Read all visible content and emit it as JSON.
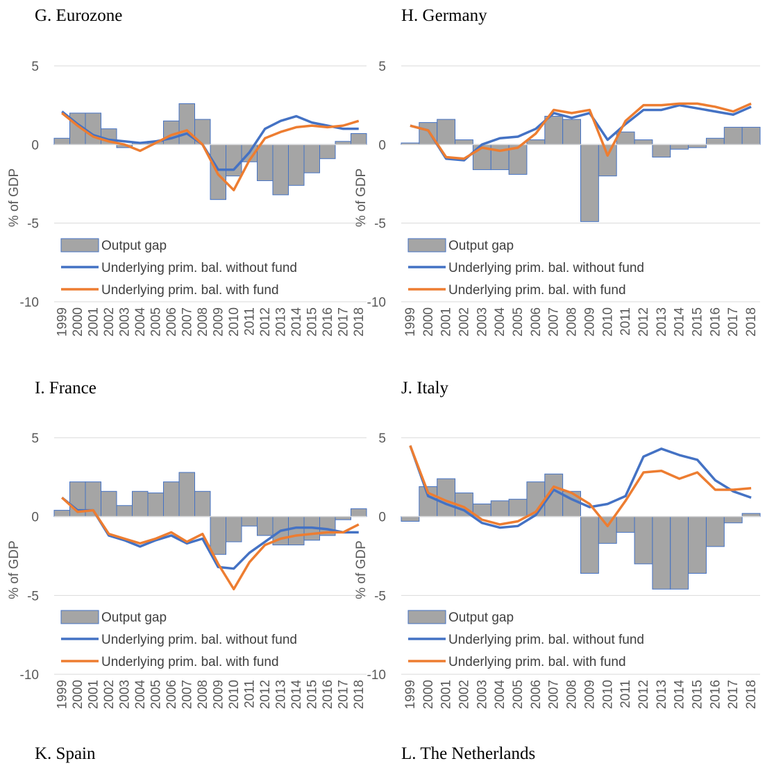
{
  "chart_data": [
    {
      "type": "combo",
      "title": "G.  Eurozone",
      "y_label": "% of GDP",
      "categories": [
        "1999",
        "2000",
        "2001",
        "2002",
        "2003",
        "2004",
        "2005",
        "2006",
        "2007",
        "2008",
        "2009",
        "2010",
        "2011",
        "2012",
        "2013",
        "2014",
        "2015",
        "2016",
        "2017",
        "2018"
      ],
      "ylim": [
        -10,
        5
      ],
      "yticks": [
        5,
        0,
        -5,
        -10
      ],
      "grid": true,
      "series": [
        {
          "name": "Output gap",
          "type": "bar",
          "color": "#a5a5a5",
          "values": [
            0.4,
            2.0,
            2.0,
            1.0,
            -0.2,
            0.1,
            0.2,
            1.5,
            2.6,
            1.6,
            -3.5,
            -2.0,
            -1.1,
            -2.3,
            -3.2,
            -2.6,
            -1.8,
            -0.9,
            0.2,
            0.7
          ]
        },
        {
          "name": "Underlying prim. bal. without fund",
          "type": "line",
          "color": "#4472c4",
          "values": [
            2.1,
            1.3,
            0.6,
            0.3,
            0.2,
            0.1,
            0.2,
            0.4,
            0.7,
            0.0,
            -1.6,
            -1.6,
            -0.5,
            1.0,
            1.5,
            1.8,
            1.4,
            1.2,
            1.0,
            1.0
          ]
        },
        {
          "name": "Underlying prim. bal. with fund",
          "type": "line",
          "color": "#ed7d31",
          "values": [
            2.0,
            1.2,
            0.5,
            0.2,
            0.0,
            -0.4,
            0.1,
            0.6,
            0.9,
            0.0,
            -1.9,
            -2.9,
            -1.0,
            0.4,
            0.8,
            1.1,
            1.2,
            1.1,
            1.2,
            1.5
          ]
        }
      ]
    },
    {
      "type": "combo",
      "title": "H.  Germany",
      "y_label": "% of GDP",
      "categories": [
        "1999",
        "2000",
        "2001",
        "2002",
        "2003",
        "2004",
        "2005",
        "2006",
        "2007",
        "2008",
        "2009",
        "2010",
        "2011",
        "2012",
        "2013",
        "2014",
        "2015",
        "2016",
        "2017",
        "2018"
      ],
      "ylim": [
        -10,
        5
      ],
      "yticks": [
        5,
        0,
        -5,
        -10
      ],
      "grid": true,
      "series": [
        {
          "name": "Output gap",
          "type": "bar",
          "color": "#a5a5a5",
          "values": [
            0.1,
            1.4,
            1.6,
            0.3,
            -1.6,
            -1.6,
            -1.9,
            0.3,
            1.8,
            1.6,
            -4.9,
            -2.0,
            0.8,
            0.3,
            -0.8,
            -0.3,
            -0.2,
            0.4,
            1.1,
            1.1
          ]
        },
        {
          "name": "Underlying prim. bal. without fund",
          "type": "line",
          "color": "#4472c4",
          "values": [
            1.2,
            0.9,
            -0.9,
            -1.0,
            0.0,
            0.4,
            0.5,
            1.0,
            2.0,
            1.7,
            2.0,
            0.3,
            1.3,
            2.2,
            2.2,
            2.5,
            2.3,
            2.1,
            1.9,
            2.4
          ]
        },
        {
          "name": "Underlying prim. bal. with fund",
          "type": "line",
          "color": "#ed7d31",
          "values": [
            1.2,
            0.9,
            -0.8,
            -0.9,
            -0.2,
            -0.4,
            -0.2,
            0.7,
            2.2,
            2.0,
            2.2,
            -0.7,
            1.5,
            2.5,
            2.5,
            2.6,
            2.6,
            2.4,
            2.1,
            2.6
          ]
        }
      ]
    },
    {
      "type": "combo",
      "title": "I.  France",
      "y_label": "% of GDP",
      "categories": [
        "1999",
        "2000",
        "2001",
        "2002",
        "2003",
        "2004",
        "2005",
        "2006",
        "2007",
        "2008",
        "2009",
        "2010",
        "2011",
        "2012",
        "2013",
        "2014",
        "2015",
        "2016",
        "2017",
        "2018"
      ],
      "ylim": [
        -10,
        5
      ],
      "yticks": [
        5,
        0,
        -5,
        -10
      ],
      "grid": true,
      "series": [
        {
          "name": "Output gap",
          "type": "bar",
          "color": "#a5a5a5",
          "values": [
            0.4,
            2.2,
            2.2,
            1.6,
            0.7,
            1.6,
            1.5,
            2.2,
            2.8,
            1.6,
            -2.4,
            -1.6,
            -0.6,
            -1.2,
            -1.8,
            -1.8,
            -1.5,
            -1.2,
            -0.2,
            0.5
          ]
        },
        {
          "name": "Underlying prim. bal. without fund",
          "type": "line",
          "color": "#4472c4",
          "values": [
            1.2,
            0.4,
            0.4,
            -1.2,
            -1.5,
            -1.9,
            -1.5,
            -1.2,
            -1.7,
            -1.4,
            -3.2,
            -3.3,
            -2.3,
            -1.6,
            -0.9,
            -0.7,
            -0.7,
            -0.8,
            -1.0,
            -1.0
          ]
        },
        {
          "name": "Underlying prim. bal. with fund",
          "type": "line",
          "color": "#ed7d31",
          "values": [
            1.2,
            0.3,
            0.4,
            -1.1,
            -1.4,
            -1.7,
            -1.4,
            -1.0,
            -1.6,
            -1.1,
            -3.0,
            -4.6,
            -2.9,
            -1.8,
            -1.4,
            -1.2,
            -1.1,
            -1.0,
            -1.0,
            -0.5
          ]
        }
      ]
    },
    {
      "type": "combo",
      "title": "J.  Italy",
      "y_label": "% of GDP",
      "categories": [
        "1999",
        "2000",
        "2001",
        "2002",
        "2003",
        "2004",
        "2005",
        "2006",
        "2007",
        "2008",
        "2009",
        "2010",
        "2011",
        "2012",
        "2013",
        "2014",
        "2015",
        "2016",
        "2017",
        "2018"
      ],
      "ylim": [
        -10,
        5
      ],
      "yticks": [
        5,
        0,
        -5,
        -10
      ],
      "grid": true,
      "series": [
        {
          "name": "Output gap",
          "type": "bar",
          "color": "#a5a5a5",
          "values": [
            -0.3,
            1.9,
            2.4,
            1.5,
            0.8,
            1.0,
            1.1,
            2.2,
            2.7,
            1.6,
            -3.6,
            -1.7,
            -1.0,
            -3.0,
            -4.6,
            -4.6,
            -3.6,
            -1.9,
            -0.4,
            0.2
          ]
        },
        {
          "name": "Underlying prim. bal. without fund",
          "type": "line",
          "color": "#4472c4",
          "values": [
            4.5,
            1.3,
            0.8,
            0.4,
            -0.4,
            -0.7,
            -0.6,
            0.1,
            1.7,
            1.1,
            0.6,
            0.8,
            1.3,
            3.8,
            4.3,
            3.9,
            3.6,
            2.3,
            1.6,
            1.2
          ]
        },
        {
          "name": "Underlying prim. bal. with fund",
          "type": "line",
          "color": "#ed7d31",
          "values": [
            4.5,
            1.5,
            1.0,
            0.6,
            -0.2,
            -0.5,
            -0.3,
            0.3,
            1.9,
            1.5,
            0.8,
            -0.6,
            1.0,
            2.8,
            2.9,
            2.4,
            2.8,
            1.7,
            1.7,
            1.8
          ]
        }
      ]
    }
  ],
  "next_panel_titles": [
    "K.  Spain",
    "L.  The Netherlands"
  ]
}
